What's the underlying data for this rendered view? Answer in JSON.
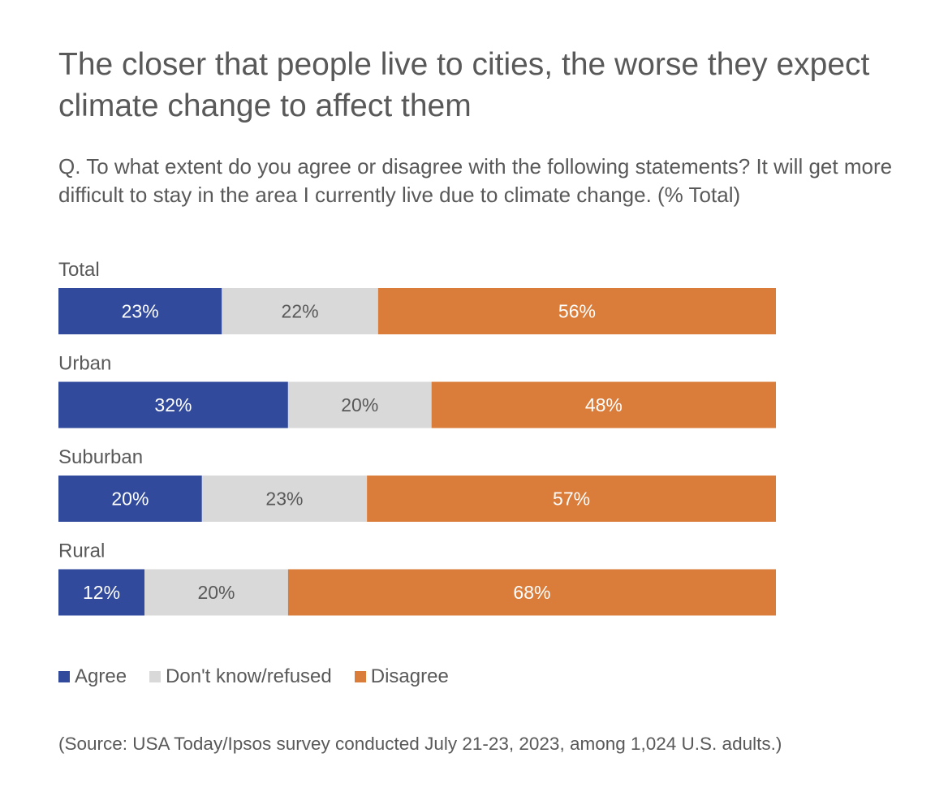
{
  "chart_data": {
    "type": "bar",
    "orientation": "horizontal",
    "stacked": true,
    "title": "The closer that people live to cities, the worse they expect climate change to affect them",
    "subtitle": "Q. To what extent do you agree or disagree with the following statements? It will get more difficult to stay in the area I currently live due to climate change. (% Total)",
    "categories": [
      "Total",
      "Urban",
      "Suburban",
      "Rural"
    ],
    "series": [
      {
        "name": "Agree",
        "color": "#314A9B",
        "label_color": "#FFFFFF",
        "values": [
          23,
          32,
          20,
          12
        ]
      },
      {
        "name": "Don't know/refused",
        "color": "#D9D9D9",
        "label_color": "#595959",
        "values": [
          22,
          20,
          23,
          20
        ]
      },
      {
        "name": "Disagree",
        "color": "#DB7D3A",
        "label_color": "#FFFFFF",
        "values": [
          56,
          48,
          57,
          68
        ]
      }
    ],
    "value_suffix": "%",
    "legend_position": "bottom-left",
    "grid": false,
    "source": "(Source: USA Today/Ipsos survey conducted July 21-23, 2023, among 1,024 U.S. adults.)"
  }
}
